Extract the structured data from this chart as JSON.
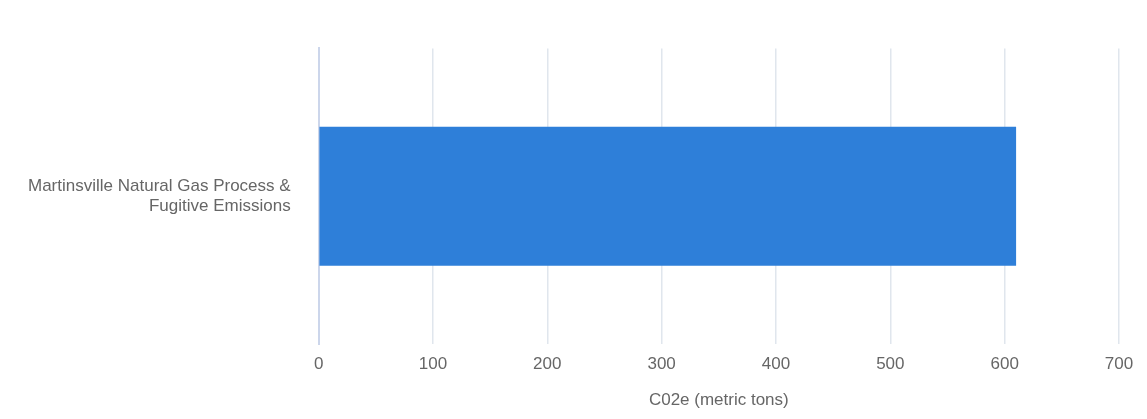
{
  "chart_data": {
    "type": "bar",
    "orientation": "horizontal",
    "categories": [
      "Martinsville Natural Gas Process & Fugitive Emissions"
    ],
    "values": [
      610
    ],
    "color": "#2e7fd9",
    "xlabel": "C02e (metric tons)",
    "xlim": [
      0,
      700
    ],
    "xticks": [
      0,
      100,
      200,
      300,
      400,
      500,
      600,
      700
    ],
    "grid": "x",
    "legend": false
  }
}
